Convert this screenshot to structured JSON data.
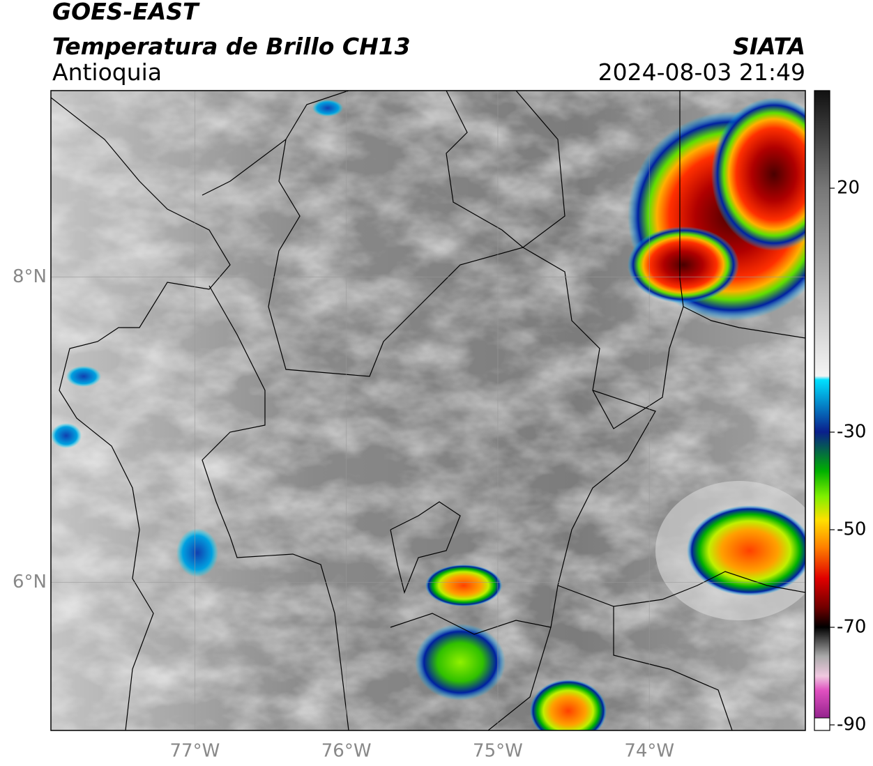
{
  "header": {
    "satellite": "GOES-EAST",
    "product": "Temperatura de Brillo CH13",
    "region": "Antioquia",
    "source": "SIATA",
    "datetime": "2024-08-03 21:49"
  },
  "map": {
    "lon_range": [
      -77.95,
      -72.97
    ],
    "lat_range": [
      5.03,
      9.22
    ],
    "lat_ticks": [
      {
        "value": 8,
        "label": "8°N"
      },
      {
        "value": 6,
        "label": "6°N"
      }
    ],
    "lon_ticks": [
      {
        "value": -77,
        "label": "77°W"
      },
      {
        "value": -76,
        "label": "76°W"
      },
      {
        "value": -75,
        "label": "75°W"
      },
      {
        "value": -74,
        "label": "74°W"
      }
    ]
  },
  "colorbar": {
    "clim": [
      -90,
      40
    ],
    "ticks": [
      20,
      -30,
      -50,
      -70,
      -90
    ]
  }
}
